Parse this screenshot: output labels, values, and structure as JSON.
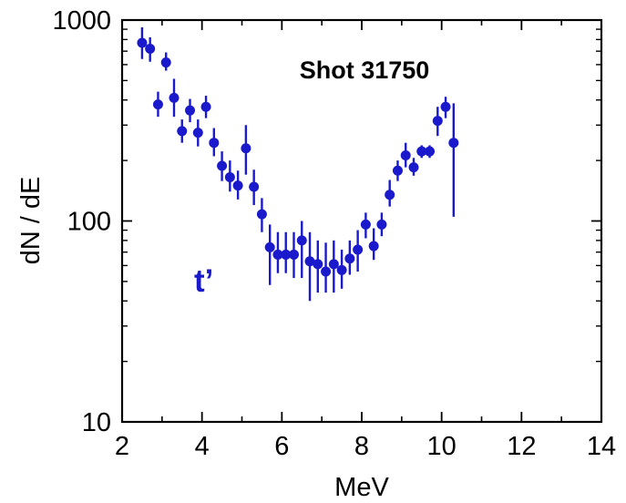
{
  "chart_data": {
    "type": "scatter",
    "title": "",
    "xlabel": "MeV",
    "ylabel": "dN / dE",
    "xlim": [
      2,
      14
    ],
    "ylim": [
      10,
      1000
    ],
    "yscale": "log",
    "grid": false,
    "x_ticks": [
      "2",
      "4",
      "6",
      "8",
      "10",
      "12",
      "14"
    ],
    "y_ticks": [
      "10",
      "100",
      "1000"
    ],
    "annotations": [
      {
        "text": "Shot 31750",
        "color": "#000000"
      },
      {
        "text": "t’",
        "color": "#1a1acc"
      }
    ],
    "marker_color": "#1a1acc",
    "series": [
      {
        "points": [
          {
            "x": 2.5,
            "y": 770,
            "lo": 640,
            "hi": 920
          },
          {
            "x": 2.7,
            "y": 720,
            "lo": 620,
            "hi": 820
          },
          {
            "x": 2.9,
            "y": 380,
            "lo": 330,
            "hi": 440
          },
          {
            "x": 3.1,
            "y": 615,
            "lo": 560,
            "hi": 690
          },
          {
            "x": 3.3,
            "y": 410,
            "lo": 330,
            "hi": 510
          },
          {
            "x": 3.5,
            "y": 280,
            "lo": 245,
            "hi": 320
          },
          {
            "x": 3.7,
            "y": 355,
            "lo": 310,
            "hi": 405
          },
          {
            "x": 3.9,
            "y": 275,
            "lo": 235,
            "hi": 320
          },
          {
            "x": 4.1,
            "y": 370,
            "lo": 325,
            "hi": 420
          },
          {
            "x": 4.3,
            "y": 245,
            "lo": 210,
            "hi": 290
          },
          {
            "x": 4.5,
            "y": 188,
            "lo": 158,
            "hi": 222
          },
          {
            "x": 4.7,
            "y": 165,
            "lo": 140,
            "hi": 200
          },
          {
            "x": 4.9,
            "y": 150,
            "lo": 128,
            "hi": 178
          },
          {
            "x": 5.1,
            "y": 230,
            "lo": 170,
            "hi": 300
          },
          {
            "x": 5.3,
            "y": 148,
            "lo": 120,
            "hi": 180
          },
          {
            "x": 5.5,
            "y": 108,
            "lo": 88,
            "hi": 130
          },
          {
            "x": 5.7,
            "y": 74,
            "lo": 48,
            "hi": 96
          },
          {
            "x": 5.9,
            "y": 68,
            "lo": 55,
            "hi": 88
          },
          {
            "x": 6.1,
            "y": 68,
            "lo": 55,
            "hi": 88
          },
          {
            "x": 6.3,
            "y": 68,
            "lo": 52,
            "hi": 88
          },
          {
            "x": 6.5,
            "y": 80,
            "lo": 52,
            "hi": 100
          },
          {
            "x": 6.7,
            "y": 63,
            "lo": 40,
            "hi": 88
          },
          {
            "x": 6.9,
            "y": 61,
            "lo": 44,
            "hi": 80
          },
          {
            "x": 7.1,
            "y": 56,
            "lo": 44,
            "hi": 78
          },
          {
            "x": 7.3,
            "y": 61,
            "lo": 44,
            "hi": 80
          },
          {
            "x": 7.5,
            "y": 57,
            "lo": 46,
            "hi": 72
          },
          {
            "x": 7.7,
            "y": 65,
            "lo": 54,
            "hi": 80
          },
          {
            "x": 7.9,
            "y": 72,
            "lo": 56,
            "hi": 90
          },
          {
            "x": 8.1,
            "y": 96,
            "lo": 82,
            "hi": 110
          },
          {
            "x": 8.3,
            "y": 75,
            "lo": 64,
            "hi": 92
          },
          {
            "x": 8.5,
            "y": 96,
            "lo": 84,
            "hi": 110
          },
          {
            "x": 8.7,
            "y": 135,
            "lo": 118,
            "hi": 160
          },
          {
            "x": 8.9,
            "y": 178,
            "lo": 158,
            "hi": 200
          },
          {
            "x": 9.1,
            "y": 212,
            "lo": 185,
            "hi": 245
          },
          {
            "x": 9.3,
            "y": 185,
            "lo": 168,
            "hi": 206
          },
          {
            "x": 9.5,
            "y": 222,
            "lo": 206,
            "hi": 238
          },
          {
            "x": 9.7,
            "y": 222,
            "lo": 206,
            "hi": 238
          },
          {
            "x": 9.9,
            "y": 315,
            "lo": 265,
            "hi": 370
          },
          {
            "x": 10.1,
            "y": 370,
            "lo": 325,
            "hi": 415
          },
          {
            "x": 10.3,
            "y": 245,
            "lo": 105,
            "hi": 385
          }
        ]
      }
    ]
  }
}
